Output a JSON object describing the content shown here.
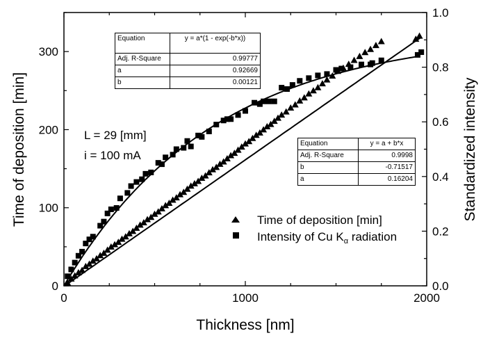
{
  "chart_data": {
    "type": "scatter",
    "xlabel": "Thickness [nm]",
    "ylabel_left": "Time of deposition [min]",
    "ylabel_right": "Standardized intensity",
    "xlim": [
      0,
      2000
    ],
    "ylim_left": [
      0,
      350
    ],
    "ylim_right": [
      0,
      1.0
    ],
    "x_ticks": [
      "0",
      "1000",
      "2000"
    ],
    "y_left_ticks": [
      "0",
      "100",
      "200",
      "300"
    ],
    "y_right_ticks": [
      "0.0",
      "0.2",
      "0.4",
      "0.6",
      "0.8",
      "1.0"
    ],
    "grid": false,
    "legend_position": "bottom-right",
    "annotations": [
      "L = 29 [mm]",
      "i = 100 mA"
    ],
    "series": [
      {
        "name": "Time of deposition [min]",
        "axis": "left",
        "marker": "triangle",
        "x": [
          20,
          40,
          60,
          80,
          100,
          120,
          140,
          160,
          180,
          200,
          220,
          240,
          260,
          280,
          300,
          320,
          340,
          360,
          380,
          400,
          420,
          440,
          460,
          480,
          500,
          520,
          540,
          560,
          580,
          600,
          620,
          640,
          660,
          680,
          700,
          720,
          740,
          760,
          780,
          800,
          820,
          840,
          860,
          880,
          900,
          920,
          940,
          960,
          980,
          1000,
          1020,
          1040,
          1060,
          1080,
          1100,
          1120,
          1140,
          1160,
          1180,
          1200,
          1225,
          1250,
          1275,
          1300,
          1325,
          1350,
          1375,
          1400,
          1425,
          1450,
          1480,
          1510,
          1540,
          1570,
          1600,
          1630,
          1660,
          1690,
          1720,
          1750,
          1940,
          1960
        ],
        "y": [
          4,
          9,
          13,
          17,
          20,
          25,
          28,
          32,
          35,
          39,
          42,
          46,
          50,
          53,
          56,
          60,
          63,
          67,
          70,
          74,
          78,
          81,
          85,
          88,
          92,
          95,
          99,
          103,
          106,
          110,
          113,
          117,
          120,
          124,
          128,
          131,
          134,
          138,
          141,
          145,
          149,
          152,
          156,
          159,
          163,
          167,
          170,
          174,
          178,
          182,
          185,
          189,
          193,
          196,
          200,
          204,
          207,
          211,
          215,
          219,
          223,
          228,
          232,
          237,
          241,
          246,
          250,
          254,
          259,
          264,
          269,
          275,
          279,
          284,
          289,
          294,
          299,
          303,
          308,
          313,
          316,
          320
        ]
      },
      {
        "name": "Intensity of Cu Kα radiation",
        "axis": "right",
        "marker": "square",
        "x": [
          20,
          40,
          60,
          80,
          100,
          120,
          140,
          160,
          200,
          220,
          240,
          260,
          290,
          310,
          350,
          370,
          400,
          430,
          450,
          480,
          520,
          540,
          560,
          600,
          620,
          660,
          680,
          700,
          740,
          760,
          800,
          840,
          880,
          900,
          920,
          960,
          1000,
          1050,
          1080,
          1100,
          1130,
          1160,
          1200,
          1230,
          1260,
          1300,
          1350,
          1400,
          1450,
          1500,
          1530,
          1580,
          1640,
          1690,
          1700,
          1750,
          1950,
          1970
        ],
        "y": [
          0.035,
          0.06,
          0.085,
          0.11,
          0.125,
          0.155,
          0.17,
          0.18,
          0.22,
          0.235,
          0.265,
          0.28,
          0.285,
          0.32,
          0.34,
          0.365,
          0.38,
          0.39,
          0.41,
          0.415,
          0.45,
          0.445,
          0.47,
          0.48,
          0.5,
          0.505,
          0.53,
          0.51,
          0.55,
          0.545,
          0.565,
          0.59,
          0.605,
          0.61,
          0.61,
          0.625,
          0.64,
          0.67,
          0.665,
          0.675,
          0.675,
          0.675,
          0.725,
          0.72,
          0.735,
          0.75,
          0.76,
          0.77,
          0.775,
          0.79,
          0.795,
          0.8,
          0.81,
          0.81,
          0.815,
          0.825,
          0.845,
          0.855
        ]
      }
    ],
    "fits": [
      {
        "series": 0,
        "model": "linear",
        "a": 0.16204,
        "b": -0.71517
      },
      {
        "series": 1,
        "model": "exp",
        "a": 0.92669,
        "b": 0.00121
      }
    ],
    "tables": [
      {
        "rows": [
          [
            "Equation",
            "y = a*(1 - exp(-b*x))"
          ],
          [
            "Adj. R-Square",
            "0.99777"
          ],
          [
            "a",
            "0.92669"
          ],
          [
            "b",
            "0.00121"
          ]
        ]
      },
      {
        "rows": [
          [
            "Equation",
            "y = a + b*x"
          ],
          [
            "Adj. R-Square",
            "0.9998"
          ],
          [
            "b",
            "-0.71517"
          ],
          [
            "a",
            "0.16204"
          ]
        ]
      }
    ],
    "legend": {
      "triangle_label": "Time of deposition [min]",
      "square_label_main": "Intensity of Cu K",
      "square_label_sub": "α",
      "square_label_tail": " radiation"
    }
  }
}
